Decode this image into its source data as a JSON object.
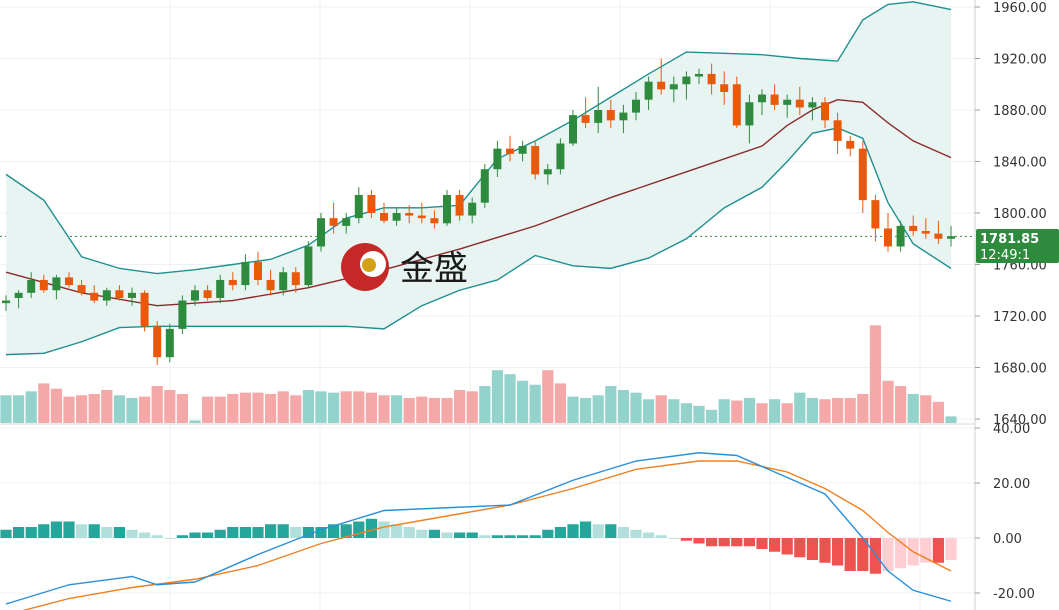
{
  "logo": {
    "text": "金盛"
  },
  "colors": {
    "up": "#2e8b3e",
    "down": "#e8590c",
    "band": "#1f8f8f",
    "band_fill": "#e8f4f2",
    "ma": "#8b2a2a",
    "vol_up": "#93d3cc",
    "vol_down": "#f4a8a8",
    "macd_line": "#2a8fd8",
    "signal_line": "#f07f20",
    "hist_pos_strong": "#26a69a",
    "hist_pos_weak": "#b2dfdb",
    "hist_neg_strong": "#ef5350",
    "hist_neg_weak": "#ffcdd2",
    "last_price_bg": "#2e8b3e"
  },
  "last_price": {
    "value": "1781.85",
    "time": "12:49:1"
  },
  "chart_data": [
    {
      "type": "candlestick",
      "yticks": [
        "1960.00",
        "1920.00",
        "1880.00",
        "1840.00",
        "1800.00",
        "1760.00",
        "1720.00",
        "1680.00",
        "1640.00"
      ],
      "ylim": [
        1640,
        1966
      ],
      "last_price": 1781.85,
      "ohlc": [
        [
          1730,
          1736,
          1724,
          1732
        ],
        [
          1734,
          1740,
          1726,
          1738
        ],
        [
          1738,
          1754,
          1734,
          1748
        ],
        [
          1748,
          1752,
          1738,
          1740
        ],
        [
          1740,
          1752,
          1733,
          1750
        ],
        [
          1750,
          1754,
          1742,
          1744
        ],
        [
          1744,
          1748,
          1736,
          1738
        ],
        [
          1738,
          1744,
          1730,
          1732
        ],
        [
          1732,
          1742,
          1728,
          1740
        ],
        [
          1740,
          1744,
          1732,
          1734
        ],
        [
          1734,
          1742,
          1728,
          1738
        ],
        [
          1738,
          1740,
          1708,
          1712
        ],
        [
          1712,
          1716,
          1682,
          1688
        ],
        [
          1688,
          1714,
          1684,
          1710
        ],
        [
          1710,
          1736,
          1706,
          1732
        ],
        [
          1732,
          1744,
          1728,
          1740
        ],
        [
          1740,
          1744,
          1732,
          1734
        ],
        [
          1734,
          1752,
          1730,
          1748
        ],
        [
          1748,
          1754,
          1740,
          1744
        ],
        [
          1744,
          1768,
          1740,
          1762
        ],
        [
          1762,
          1770,
          1744,
          1748
        ],
        [
          1748,
          1756,
          1736,
          1740
        ],
        [
          1740,
          1758,
          1736,
          1754
        ],
        [
          1754,
          1758,
          1738,
          1744
        ],
        [
          1744,
          1778,
          1742,
          1774
        ],
        [
          1774,
          1800,
          1770,
          1796
        ],
        [
          1796,
          1808,
          1784,
          1790
        ],
        [
          1790,
          1800,
          1784,
          1796
        ],
        [
          1796,
          1820,
          1792,
          1814
        ],
        [
          1814,
          1818,
          1796,
          1800
        ],
        [
          1800,
          1808,
          1792,
          1794
        ],
        [
          1794,
          1804,
          1790,
          1800
        ],
        [
          1800,
          1806,
          1792,
          1798
        ],
        [
          1798,
          1808,
          1792,
          1796
        ],
        [
          1796,
          1802,
          1788,
          1792
        ],
        [
          1792,
          1818,
          1790,
          1814
        ],
        [
          1814,
          1818,
          1794,
          1798
        ],
        [
          1798,
          1812,
          1792,
          1808
        ],
        [
          1808,
          1838,
          1804,
          1834
        ],
        [
          1834,
          1856,
          1828,
          1850
        ],
        [
          1850,
          1860,
          1840,
          1846
        ],
        [
          1846,
          1856,
          1840,
          1852
        ],
        [
          1852,
          1856,
          1826,
          1830
        ],
        [
          1830,
          1838,
          1822,
          1834
        ],
        [
          1834,
          1858,
          1830,
          1854
        ],
        [
          1854,
          1880,
          1852,
          1876
        ],
        [
          1876,
          1890,
          1866,
          1870
        ],
        [
          1870,
          1898,
          1862,
          1880
        ],
        [
          1880,
          1888,
          1866,
          1872
        ],
        [
          1872,
          1884,
          1862,
          1878
        ],
        [
          1878,
          1894,
          1872,
          1888
        ],
        [
          1888,
          1906,
          1880,
          1902
        ],
        [
          1902,
          1920,
          1892,
          1896
        ],
        [
          1896,
          1906,
          1886,
          1900
        ],
        [
          1900,
          1910,
          1888,
          1906
        ],
        [
          1906,
          1912,
          1900,
          1908
        ],
        [
          1908,
          1916,
          1892,
          1900
        ],
        [
          1900,
          1910,
          1884,
          1894
        ],
        [
          1900,
          1906,
          1866,
          1868
        ],
        [
          1868,
          1892,
          1854,
          1886
        ],
        [
          1886,
          1896,
          1876,
          1892
        ],
        [
          1892,
          1900,
          1880,
          1884
        ],
        [
          1884,
          1892,
          1874,
          1888
        ],
        [
          1888,
          1898,
          1876,
          1882
        ],
        [
          1882,
          1890,
          1872,
          1886
        ],
        [
          1886,
          1890,
          1866,
          1872
        ],
        [
          1872,
          1878,
          1846,
          1856
        ],
        [
          1856,
          1860,
          1844,
          1850
        ],
        [
          1850,
          1856,
          1800,
          1810
        ],
        [
          1810,
          1814,
          1778,
          1788
        ],
        [
          1788,
          1800,
          1770,
          1774
        ],
        [
          1774,
          1794,
          1770,
          1790
        ],
        [
          1790,
          1798,
          1782,
          1786
        ],
        [
          1786,
          1796,
          1780,
          1784
        ],
        [
          1784,
          1794,
          1776,
          1780
        ],
        [
          1780,
          1790,
          1774,
          1782
        ]
      ],
      "ma": [
        [
          0,
          1754
        ],
        [
          6,
          1738
        ],
        [
          12,
          1728
        ],
        [
          18,
          1732
        ],
        [
          24,
          1742
        ],
        [
          30,
          1756
        ],
        [
          36,
          1772
        ],
        [
          42,
          1790
        ],
        [
          48,
          1812
        ],
        [
          54,
          1832
        ],
        [
          60,
          1852
        ],
        [
          62,
          1868
        ],
        [
          64,
          1880
        ],
        [
          66,
          1888
        ],
        [
          68,
          1886
        ],
        [
          70,
          1870
        ],
        [
          72,
          1856
        ],
        [
          75,
          1843
        ]
      ],
      "bb_upper": [
        [
          0,
          1830
        ],
        [
          3,
          1810
        ],
        [
          6,
          1766
        ],
        [
          9,
          1757
        ],
        [
          12,
          1753
        ],
        [
          15,
          1756
        ],
        [
          18,
          1760
        ],
        [
          21,
          1764
        ],
        [
          24,
          1775
        ],
        [
          27,
          1796
        ],
        [
          30,
          1804
        ],
        [
          33,
          1804
        ],
        [
          36,
          1806
        ],
        [
          39,
          1842
        ],
        [
          42,
          1856
        ],
        [
          45,
          1872
        ],
        [
          48,
          1890
        ],
        [
          51,
          1908
        ],
        [
          54,
          1925
        ],
        [
          57,
          1924
        ],
        [
          60,
          1923
        ],
        [
          63,
          1920
        ],
        [
          66,
          1918
        ],
        [
          68,
          1950
        ],
        [
          70,
          1962
        ],
        [
          72,
          1964
        ],
        [
          75,
          1958
        ]
      ],
      "bb_lower": [
        [
          0,
          1690
        ],
        [
          3,
          1691
        ],
        [
          6,
          1700
        ],
        [
          9,
          1711
        ],
        [
          12,
          1712
        ],
        [
          15,
          1712
        ],
        [
          18,
          1712
        ],
        [
          21,
          1712
        ],
        [
          24,
          1712
        ],
        [
          27,
          1712
        ],
        [
          30,
          1710
        ],
        [
          33,
          1728
        ],
        [
          36,
          1740
        ],
        [
          39,
          1748
        ],
        [
          42,
          1767
        ],
        [
          45,
          1759
        ],
        [
          48,
          1757
        ],
        [
          51,
          1765
        ],
        [
          54,
          1780
        ],
        [
          57,
          1804
        ],
        [
          60,
          1820
        ],
        [
          62,
          1840
        ],
        [
          64,
          1862
        ],
        [
          66,
          1866
        ],
        [
          68,
          1858
        ],
        [
          70,
          1808
        ],
        [
          72,
          1776
        ],
        [
          75,
          1757
        ]
      ],
      "volume": [
        [
          21,
          1
        ],
        [
          21,
          1
        ],
        [
          24,
          1
        ],
        [
          30,
          0
        ],
        [
          26,
          0
        ],
        [
          20,
          0
        ],
        [
          21,
          0
        ],
        [
          22,
          0
        ],
        [
          25,
          0
        ],
        [
          21,
          1
        ],
        [
          19,
          1
        ],
        [
          20,
          0
        ],
        [
          28,
          0
        ],
        [
          25,
          0
        ],
        [
          22,
          0
        ],
        [
          2,
          1
        ],
        [
          20,
          0
        ],
        [
          20,
          0
        ],
        [
          22,
          0
        ],
        [
          23,
          0
        ],
        [
          23,
          0
        ],
        [
          22,
          0
        ],
        [
          24,
          0
        ],
        [
          21,
          0
        ],
        [
          25,
          1
        ],
        [
          24,
          1
        ],
        [
          23,
          1
        ],
        [
          24,
          0
        ],
        [
          24,
          0
        ],
        [
          23,
          0
        ],
        [
          21,
          0
        ],
        [
          21,
          1
        ],
        [
          19,
          0
        ],
        [
          20,
          0
        ],
        [
          19,
          0
        ],
        [
          19,
          0
        ],
        [
          25,
          0
        ],
        [
          24,
          0
        ],
        [
          28,
          1
        ],
        [
          40,
          1
        ],
        [
          37,
          1
        ],
        [
          32,
          1
        ],
        [
          29,
          1
        ],
        [
          40,
          0
        ],
        [
          30,
          0
        ],
        [
          20,
          1
        ],
        [
          19,
          1
        ],
        [
          21,
          1
        ],
        [
          28,
          1
        ],
        [
          25,
          1
        ],
        [
          23,
          1
        ],
        [
          18,
          1
        ],
        [
          21,
          0
        ],
        [
          18,
          1
        ],
        [
          15,
          1
        ],
        [
          13,
          1
        ],
        [
          10,
          1
        ],
        [
          18,
          1
        ],
        [
          17,
          0
        ],
        [
          19,
          1
        ],
        [
          15,
          0
        ],
        [
          18,
          1
        ],
        [
          15,
          0
        ],
        [
          23,
          1
        ],
        [
          19,
          1
        ],
        [
          18,
          0
        ],
        [
          19,
          0
        ],
        [
          19,
          0
        ],
        [
          22,
          0
        ],
        [
          74,
          0
        ],
        [
          32,
          0
        ],
        [
          28,
          0
        ],
        [
          22,
          1
        ],
        [
          21,
          0
        ],
        [
          16,
          0
        ],
        [
          5,
          1
        ]
      ]
    },
    {
      "type": "macd",
      "yticks": [
        "40.00",
        "20.00",
        "0.00",
        "-20.00"
      ],
      "ylim": [
        -25,
        41
      ],
      "macd_line": [
        [
          0,
          -24
        ],
        [
          5,
          -17
        ],
        [
          10,
          -14
        ],
        [
          12,
          -17
        ],
        [
          15,
          -16
        ],
        [
          20,
          -6
        ],
        [
          25,
          3
        ],
        [
          30,
          10
        ],
        [
          35,
          11
        ],
        [
          40,
          12
        ],
        [
          45,
          21
        ],
        [
          50,
          28
        ],
        [
          55,
          31
        ],
        [
          58,
          30
        ],
        [
          62,
          22
        ],
        [
          65,
          16
        ],
        [
          68,
          0
        ],
        [
          70,
          -12
        ],
        [
          72,
          -19
        ],
        [
          75,
          -23
        ]
      ],
      "signal_line": [
        [
          0,
          -28
        ],
        [
          5,
          -22
        ],
        [
          10,
          -18
        ],
        [
          15,
          -15
        ],
        [
          20,
          -10
        ],
        [
          25,
          -2
        ],
        [
          30,
          4
        ],
        [
          35,
          8
        ],
        [
          40,
          12
        ],
        [
          45,
          18
        ],
        [
          50,
          25
        ],
        [
          55,
          28
        ],
        [
          58,
          28
        ],
        [
          62,
          24
        ],
        [
          65,
          18
        ],
        [
          68,
          10
        ],
        [
          70,
          2
        ],
        [
          72,
          -5
        ],
        [
          75,
          -12
        ]
      ],
      "histogram": [
        3,
        4,
        4,
        5,
        6,
        6,
        5,
        5,
        4,
        4,
        3,
        2,
        1,
        0,
        1,
        2,
        2,
        3,
        4,
        4,
        4,
        5,
        5,
        4,
        4,
        4,
        5,
        5,
        6,
        7,
        6,
        5,
        4,
        3,
        3,
        2,
        2,
        2,
        1,
        1,
        1,
        1,
        1,
        3,
        4,
        5,
        6,
        5,
        5,
        4,
        3,
        2,
        1,
        0,
        -1,
        -2,
        -3,
        -3,
        -3,
        -3,
        -4,
        -5,
        -6,
        -7,
        -8,
        -9,
        -10,
        -12,
        -12,
        -13,
        -12,
        -11,
        -10,
        -9,
        -9,
        -8
      ]
    }
  ]
}
